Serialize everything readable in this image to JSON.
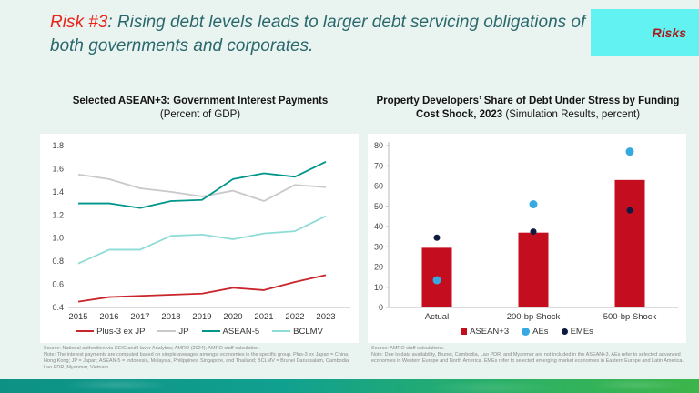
{
  "header": {
    "risk_label": "Risk #3",
    "title_rest": ": Rising debt levels leads to larger debt servicing obligations of both governments and corporates.",
    "corner_tab_label": "Risks"
  },
  "left_chart": {
    "title": "Selected ASEAN+3: Government Interest Payments",
    "subtitle": "(Percent of GDP)",
    "source": "Source: National authorities via CEIC and Haver Analytics; AMRO (2024); AMRO staff calculation.",
    "note": "Note: The interest payments are computed based on simple averages amongst economies in the specific group. Plus-3 ex Japan = China, Hong Kong; JP = Japan; ASEAN-5 = Indonesia, Malaysia, Philippines, Singapore, and Thailand; BCLMV = Brunei Darussalam, Cambodia, Lao PDR, Myanmar, Vietnam."
  },
  "right_chart": {
    "title": "Property Developers’ Share of Debt Under Stress by Funding Cost Shock, 2023",
    "subtitle": "(Simulation Results, percent)",
    "source": "Source: AMRO staff calculations.",
    "note": "Note: Due to data availability, Brunei, Cambodia, Lao PDR, and Myanmar are not included in the ASEAN+3. AEs refer to selected advanced economies in Western Europe and North America. EMEs refer to selected emerging market economies in Eastern Europe and Latin America."
  },
  "chart_data": [
    {
      "type": "line",
      "title": "Selected ASEAN+3: Government Interest Payments (Percent of GDP)",
      "xlabel": "",
      "ylabel": "Percent of GDP",
      "x": [
        "2015",
        "2016",
        "2017",
        "2018",
        "2019",
        "2020",
        "2021",
        "2022",
        "2023"
      ],
      "ylim": [
        0.4,
        1.8
      ],
      "ytick_step": 0.2,
      "grid": false,
      "legend_position": "bottom",
      "series": [
        {
          "name": "Plus-3 ex JP",
          "color": "#c9252b",
          "values": [
            0.45,
            0.49,
            0.5,
            0.51,
            0.52,
            0.57,
            0.55,
            0.62,
            0.68
          ]
        },
        {
          "name": "JP",
          "color": "#c9c9c9",
          "values": [
            1.55,
            1.51,
            1.43,
            1.4,
            1.36,
            1.41,
            1.32,
            1.46,
            1.44
          ]
        },
        {
          "name": "ASEAN-5",
          "color": "#00958a",
          "values": [
            1.3,
            1.3,
            1.26,
            1.32,
            1.33,
            1.51,
            1.56,
            1.53,
            1.66
          ]
        },
        {
          "name": "BCLMV",
          "color": "#8edcd6",
          "values": [
            0.78,
            0.9,
            0.9,
            1.02,
            1.03,
            0.99,
            1.04,
            1.06,
            1.19
          ]
        }
      ]
    },
    {
      "type": "bar",
      "title": "Property Developers' Share of Debt Under Stress by Funding Cost Shock, 2023 (Simulation Results, percent)",
      "xlabel": "",
      "ylabel": "percent",
      "categories": [
        "Actual",
        "200-bp Shock",
        "500-bp Shock"
      ],
      "ylim": [
        0,
        80
      ],
      "ytick_step": 10,
      "grid": false,
      "legend_position": "bottom",
      "bar_series": {
        "name": "ASEAN+3",
        "color": "#c40d1e",
        "values": [
          29.5,
          37,
          63
        ]
      },
      "dot_series": [
        {
          "name": "AEs",
          "color": "#36a9e1",
          "values": [
            13.5,
            51,
            77
          ]
        },
        {
          "name": "EMEs",
          "color": "#0e1a40",
          "values": [
            34.5,
            37.5,
            48
          ]
        }
      ]
    }
  ],
  "colors": {
    "slide_bg": "#e9f3f0",
    "header_accent": "#e8251d",
    "header_text": "#2a686c",
    "tab_bg": "#62f2f2",
    "tab_text": "#a81d1d",
    "panel_bg": "#ffffff",
    "axis": "#b9b9b9",
    "footer_teal": "#0d9184",
    "footer_green": "#3cb54a"
  }
}
